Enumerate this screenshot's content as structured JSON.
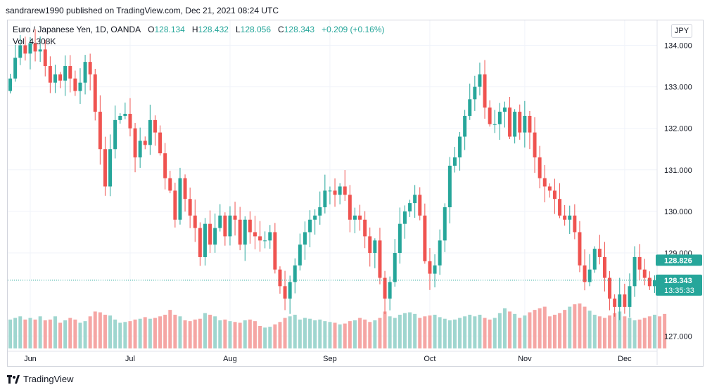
{
  "header": {
    "published": "sandrarew1990 published on TradingView.com, Dec 21, 2021 08:24 UTC"
  },
  "legend": {
    "symbol": "Euro / Japanese Yen, 1D, OANDA",
    "o_label": "O",
    "o": "128.134",
    "h_label": "H",
    "h": "128.432",
    "l_label": "L",
    "l": "128.056",
    "c_label": "C",
    "c": "128.343",
    "change": "+0.209 (+0.16%)",
    "vol_label": "Vol",
    "vol": "4.308K"
  },
  "currency_button": "JPY",
  "brand": {
    "name": "TradingView",
    "icon": "tradingview-logo-icon"
  },
  "colors": {
    "up": "#26a69a",
    "down": "#ef5350",
    "vol_up": "#9fd6cf",
    "vol_down": "#f5a6a4",
    "price_label": "#26a69a",
    "grid": "#f0f3fa"
  },
  "chart_data": {
    "type": "candlestick",
    "y_ticks": [
      "134.000",
      "133.000",
      "132.000",
      "131.000",
      "130.000",
      "129.000",
      "127.000"
    ],
    "y_tick_values": [
      134,
      133,
      132,
      131,
      130,
      129,
      127
    ],
    "ylim": [
      126.7,
      134.6
    ],
    "x_ticks": [
      "Jun",
      "Jul",
      "Aug",
      "Sep",
      "Oct",
      "Nov",
      "Dec"
    ],
    "x_tick_index": [
      4,
      24,
      44,
      64,
      84,
      103,
      123
    ],
    "current_price_label": "128.343",
    "countdown_label": "13:35:33",
    "other_price_label": "128.826",
    "other_price_value": 128.826,
    "current_price_value": 128.343,
    "closes": [
      133.2,
      133.7,
      134.0,
      133.8,
      134.05,
      133.85,
      133.9,
      133.5,
      133.1,
      133.3,
      133.15,
      133.5,
      133.2,
      132.9,
      133.1,
      133.6,
      133.3,
      132.4,
      131.5,
      130.6,
      131.5,
      132.2,
      132.3,
      132.35,
      132.0,
      131.3,
      131.7,
      131.6,
      132.2,
      131.9,
      131.4,
      130.8,
      130.5,
      129.8,
      130.8,
      130.3,
      129.9,
      129.6,
      128.9,
      129.7,
      129.2,
      129.6,
      129.9,
      129.4,
      129.9,
      129.8,
      129.2,
      129.8,
      129.5,
      129.4,
      129.3,
      129.3,
      129.5,
      128.6,
      128.2,
      127.9,
      128.3,
      128.7,
      129.2,
      129.5,
      129.8,
      129.9,
      130.1,
      130.5,
      130.5,
      130.4,
      130.6,
      130.4,
      129.8,
      129.9,
      129.8,
      129.4,
      129.0,
      129.3,
      128.4,
      127.9,
      128.3,
      129.0,
      129.7,
      130.0,
      130.2,
      130.4,
      129.9,
      128.8,
      128.5,
      128.7,
      129.3,
      130.1,
      131.1,
      131.3,
      131.8,
      132.3,
      132.7,
      133.0,
      133.3,
      132.5,
      132.1,
      132.1,
      132.4,
      132.5,
      131.8,
      132.4,
      131.9,
      132.3,
      131.9,
      131.3,
      130.8,
      130.6,
      130.5,
      130.3,
      129.9,
      129.8,
      129.9,
      129.5,
      128.7,
      128.3,
      128.6,
      129.1,
      128.9,
      128.4,
      127.9,
      127.7,
      128.0,
      127.7,
      128.2,
      128.9,
      128.6,
      128.4,
      128.2,
      128.343
    ],
    "volumes": [
      36,
      38,
      40,
      36,
      38,
      36,
      40,
      35,
      36,
      40,
      32,
      35,
      38,
      36,
      32,
      34,
      40,
      46,
      45,
      42,
      41,
      36,
      32,
      33,
      34,
      36,
      37,
      39,
      37,
      38,
      40,
      42,
      48,
      42,
      40,
      35,
      34,
      36,
      37,
      44,
      42,
      40,
      35,
      36,
      34,
      33,
      32,
      35,
      36,
      34,
      28,
      26,
      27,
      30,
      33,
      38,
      40,
      42,
      36,
      38,
      37,
      35,
      36,
      34,
      33,
      32,
      30,
      31,
      34,
      35,
      38,
      36,
      33,
      35,
      38,
      46,
      40,
      38,
      42,
      44,
      45,
      43,
      38,
      40,
      41,
      42,
      39,
      37,
      35,
      36,
      38,
      40,
      42,
      40,
      42,
      38,
      36,
      38,
      44,
      50,
      46,
      43,
      38,
      41,
      45,
      48,
      50,
      52,
      40,
      42,
      44,
      48,
      52,
      55,
      56,
      52,
      47,
      42,
      40,
      38,
      41,
      44,
      46,
      40,
      38,
      35,
      36,
      38,
      40,
      42,
      40,
      43
    ]
  }
}
